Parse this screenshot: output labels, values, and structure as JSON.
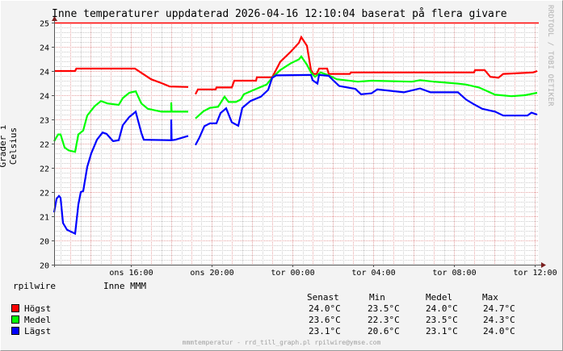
{
  "chart_data": {
    "type": "line",
    "title": "Inne temperaturer uppdaterad 2026-04-16 12:10:04 baserat på flera givare",
    "ylabel": "Grader i Celsius",
    "xlabel": "",
    "x_unit": "hour of day (values past 24 = next day)",
    "xlim": [
      12.2,
      36.2
    ],
    "ylim": [
      20,
      25
    ],
    "y_ticks": [
      20,
      20.5,
      21,
      21.5,
      22,
      22.5,
      23,
      23.5,
      24,
      24.5,
      25
    ],
    "y_tick_labels": [
      "20",
      "20",
      "21",
      "22",
      "22",
      "22",
      "23",
      "24",
      "24",
      "24",
      "25"
    ],
    "x_ticks": [
      16,
      20,
      24,
      28,
      32,
      36
    ],
    "x_tick_labels": [
      "ons 16:00",
      "ons 20:00",
      "tor 00:00",
      "tor 04:00",
      "tor 08:00",
      "tor 12:00"
    ],
    "grid": true,
    "hrule": {
      "value": 25,
      "color": "#ff0000"
    },
    "series": [
      {
        "name": "Högst",
        "color": "#ff0000",
        "points": [
          [
            12.2,
            24.0
          ],
          [
            13.24,
            24.0
          ],
          [
            13.3,
            24.05
          ],
          [
            16.2,
            24.05
          ],
          [
            16.6,
            23.94
          ],
          [
            17.0,
            23.83
          ],
          [
            17.52,
            23.75
          ],
          [
            17.92,
            23.68
          ],
          [
            18.84,
            23.67
          ],
          [
            18.9,
            null
          ],
          [
            19.2,
            23.52
          ],
          [
            19.32,
            23.62
          ],
          [
            20.2,
            23.62
          ],
          [
            20.24,
            23.66
          ],
          [
            21.0,
            23.66
          ],
          [
            21.12,
            23.8
          ],
          [
            22.2,
            23.8
          ],
          [
            22.24,
            23.87
          ],
          [
            23.0,
            23.87
          ],
          [
            23.4,
            24.19
          ],
          [
            23.92,
            24.4
          ],
          [
            24.32,
            24.58
          ],
          [
            24.44,
            24.7
          ],
          [
            24.72,
            24.52
          ],
          [
            24.92,
            24.02
          ],
          [
            25.04,
            23.94
          ],
          [
            25.2,
            23.94
          ],
          [
            25.32,
            24.05
          ],
          [
            25.72,
            24.05
          ],
          [
            25.8,
            23.94
          ],
          [
            26.84,
            23.94
          ],
          [
            26.9,
            23.97
          ],
          [
            33.0,
            23.97
          ],
          [
            33.04,
            24.02
          ],
          [
            33.52,
            24.02
          ],
          [
            33.8,
            23.88
          ],
          [
            34.2,
            23.86
          ],
          [
            34.44,
            23.94
          ],
          [
            35.92,
            23.97
          ],
          [
            36.12,
            24.0
          ]
        ]
      },
      {
        "name": "Medel",
        "color": "#00ff00",
        "points": [
          [
            12.2,
            22.55
          ],
          [
            12.4,
            22.69
          ],
          [
            12.52,
            22.69
          ],
          [
            12.72,
            22.42
          ],
          [
            12.92,
            22.36
          ],
          [
            13.24,
            22.33
          ],
          [
            13.4,
            22.69
          ],
          [
            13.64,
            22.77
          ],
          [
            13.84,
            23.08
          ],
          [
            14.2,
            23.27
          ],
          [
            14.52,
            23.38
          ],
          [
            14.84,
            23.33
          ],
          [
            15.4,
            23.3
          ],
          [
            15.6,
            23.44
          ],
          [
            15.92,
            23.55
          ],
          [
            16.24,
            23.58
          ],
          [
            16.52,
            23.33
          ],
          [
            16.84,
            23.22
          ],
          [
            17.52,
            23.16
          ],
          [
            18.0,
            23.16
          ],
          [
            18.0,
            23.35
          ],
          [
            18.02,
            23.16
          ],
          [
            18.84,
            23.16
          ],
          [
            18.9,
            null
          ],
          [
            19.2,
            23.02
          ],
          [
            19.6,
            23.17
          ],
          [
            19.92,
            23.24
          ],
          [
            20.32,
            23.26
          ],
          [
            20.64,
            23.47
          ],
          [
            20.84,
            23.36
          ],
          [
            21.2,
            23.36
          ],
          [
            21.44,
            23.41
          ],
          [
            21.6,
            23.52
          ],
          [
            22.2,
            23.63
          ],
          [
            22.72,
            23.72
          ],
          [
            23.0,
            23.86
          ],
          [
            23.4,
            24.02
          ],
          [
            23.92,
            24.16
          ],
          [
            24.32,
            24.24
          ],
          [
            24.44,
            24.3
          ],
          [
            24.72,
            24.13
          ],
          [
            24.92,
            23.97
          ],
          [
            25.12,
            23.88
          ],
          [
            25.4,
            23.97
          ],
          [
            25.8,
            23.91
          ],
          [
            26.2,
            23.83
          ],
          [
            27.24,
            23.78
          ],
          [
            27.92,
            23.8
          ],
          [
            29.92,
            23.78
          ],
          [
            30.32,
            23.81
          ],
          [
            31.0,
            23.78
          ],
          [
            32.2,
            23.74
          ],
          [
            32.6,
            23.72
          ],
          [
            33.24,
            23.66
          ],
          [
            34.04,
            23.51
          ],
          [
            34.84,
            23.48
          ],
          [
            35.52,
            23.5
          ],
          [
            36.12,
            23.55
          ]
        ]
      },
      {
        "name": "Lägst",
        "color": "#0000ff",
        "points": [
          [
            12.2,
            21.08
          ],
          [
            12.32,
            21.36
          ],
          [
            12.44,
            21.42
          ],
          [
            12.52,
            21.38
          ],
          [
            12.64,
            20.86
          ],
          [
            12.84,
            20.72
          ],
          [
            13.24,
            20.64
          ],
          [
            13.4,
            21.24
          ],
          [
            13.52,
            21.5
          ],
          [
            13.64,
            21.52
          ],
          [
            13.84,
            22.02
          ],
          [
            14.04,
            22.3
          ],
          [
            14.32,
            22.58
          ],
          [
            14.6,
            22.73
          ],
          [
            14.8,
            22.7
          ],
          [
            15.12,
            22.55
          ],
          [
            15.4,
            22.57
          ],
          [
            15.6,
            22.88
          ],
          [
            15.92,
            23.05
          ],
          [
            16.24,
            23.16
          ],
          [
            16.52,
            22.72
          ],
          [
            16.64,
            22.58
          ],
          [
            18.0,
            22.57
          ],
          [
            18.0,
            23.0
          ],
          [
            18.02,
            22.57
          ],
          [
            18.2,
            22.58
          ],
          [
            18.84,
            22.66
          ],
          [
            18.9,
            null
          ],
          [
            19.2,
            22.47
          ],
          [
            19.4,
            22.63
          ],
          [
            19.64,
            22.86
          ],
          [
            19.92,
            22.92
          ],
          [
            20.24,
            22.92
          ],
          [
            20.44,
            23.13
          ],
          [
            20.72,
            23.23
          ],
          [
            21.0,
            22.94
          ],
          [
            21.32,
            22.87
          ],
          [
            21.52,
            23.24
          ],
          [
            21.92,
            23.38
          ],
          [
            22.44,
            23.47
          ],
          [
            22.8,
            23.61
          ],
          [
            23.0,
            23.86
          ],
          [
            23.2,
            23.91
          ],
          [
            24.92,
            23.92
          ],
          [
            25.0,
            23.81
          ],
          [
            25.24,
            23.74
          ],
          [
            25.32,
            23.92
          ],
          [
            25.8,
            23.9
          ],
          [
            26.04,
            23.8
          ],
          [
            26.32,
            23.69
          ],
          [
            27.12,
            23.63
          ],
          [
            27.4,
            23.52
          ],
          [
            27.92,
            23.54
          ],
          [
            28.2,
            23.62
          ],
          [
            29.52,
            23.56
          ],
          [
            30.32,
            23.64
          ],
          [
            30.84,
            23.56
          ],
          [
            32.2,
            23.56
          ],
          [
            32.6,
            23.41
          ],
          [
            33.0,
            23.31
          ],
          [
            33.4,
            23.22
          ],
          [
            34.04,
            23.16
          ],
          [
            34.44,
            23.08
          ],
          [
            35.64,
            23.08
          ],
          [
            35.84,
            23.14
          ],
          [
            36.12,
            23.1
          ]
        ]
      }
    ]
  },
  "watermark": "RRDTOOL / TOBI OETIKER",
  "legend": {
    "host": "rpilwire",
    "group": "Inne MMM",
    "columns": [
      "Senast",
      "Min",
      "Medel",
      "Max"
    ],
    "rows": [
      {
        "label": "Högst",
        "color": "#ff0000",
        "values": [
          "24.0°C",
          "23.5°C",
          "24.0°C",
          "24.7°C"
        ]
      },
      {
        "label": "Medel",
        "color": "#00ff00",
        "values": [
          "23.6°C",
          "22.3°C",
          "23.5°C",
          "24.3°C"
        ]
      },
      {
        "label": "Lägst",
        "color": "#0000ff",
        "values": [
          "23.1°C",
          "20.6°C",
          "23.1°C",
          "24.0°C"
        ]
      }
    ]
  },
  "footer": "mmmtemperatur - rrd_till_graph.pl rpilwire@ymse.com"
}
